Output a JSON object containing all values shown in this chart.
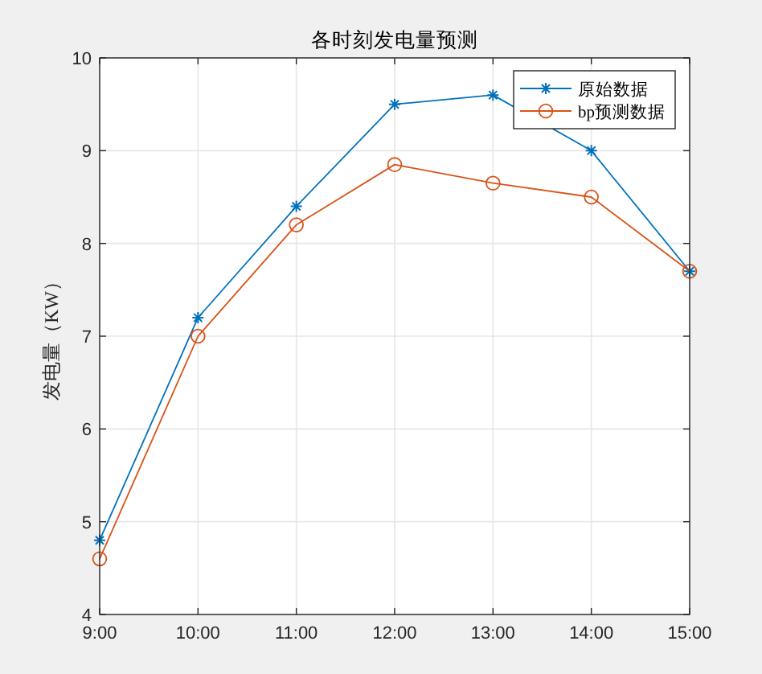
{
  "chart_data": {
    "type": "line",
    "title": "各时刻发电量预测",
    "ylabel": "发电量（KW）",
    "x": [
      9,
      10,
      11,
      12,
      13,
      14,
      15
    ],
    "xlim": [
      9,
      15
    ],
    "xticks": [
      {
        "value": 9,
        "label": "9:00"
      },
      {
        "value": 10,
        "label": "10:00"
      },
      {
        "value": 11,
        "label": "11:00"
      },
      {
        "value": 12,
        "label": "12:00"
      },
      {
        "value": 13,
        "label": "13:00"
      },
      {
        "value": 14,
        "label": "14:00"
      },
      {
        "value": 15,
        "label": "15:00"
      }
    ],
    "ylim": [
      4,
      10
    ],
    "yticks": [
      4,
      5,
      6,
      7,
      8,
      9,
      10
    ],
    "grid": true,
    "legend": "top right",
    "line_style": "solid",
    "series": [
      {
        "name": "原始数据",
        "color": "#0072bd",
        "marker": "cross",
        "values": [
          4.8,
          7.2,
          8.4,
          9.5,
          9.6,
          9.0,
          7.7
        ]
      },
      {
        "name": "bp预测数据",
        "color": "#d95319",
        "marker": "circle",
        "values": [
          4.6,
          7.0,
          8.2,
          8.85,
          8.65,
          8.5,
          7.7
        ]
      }
    ]
  }
}
